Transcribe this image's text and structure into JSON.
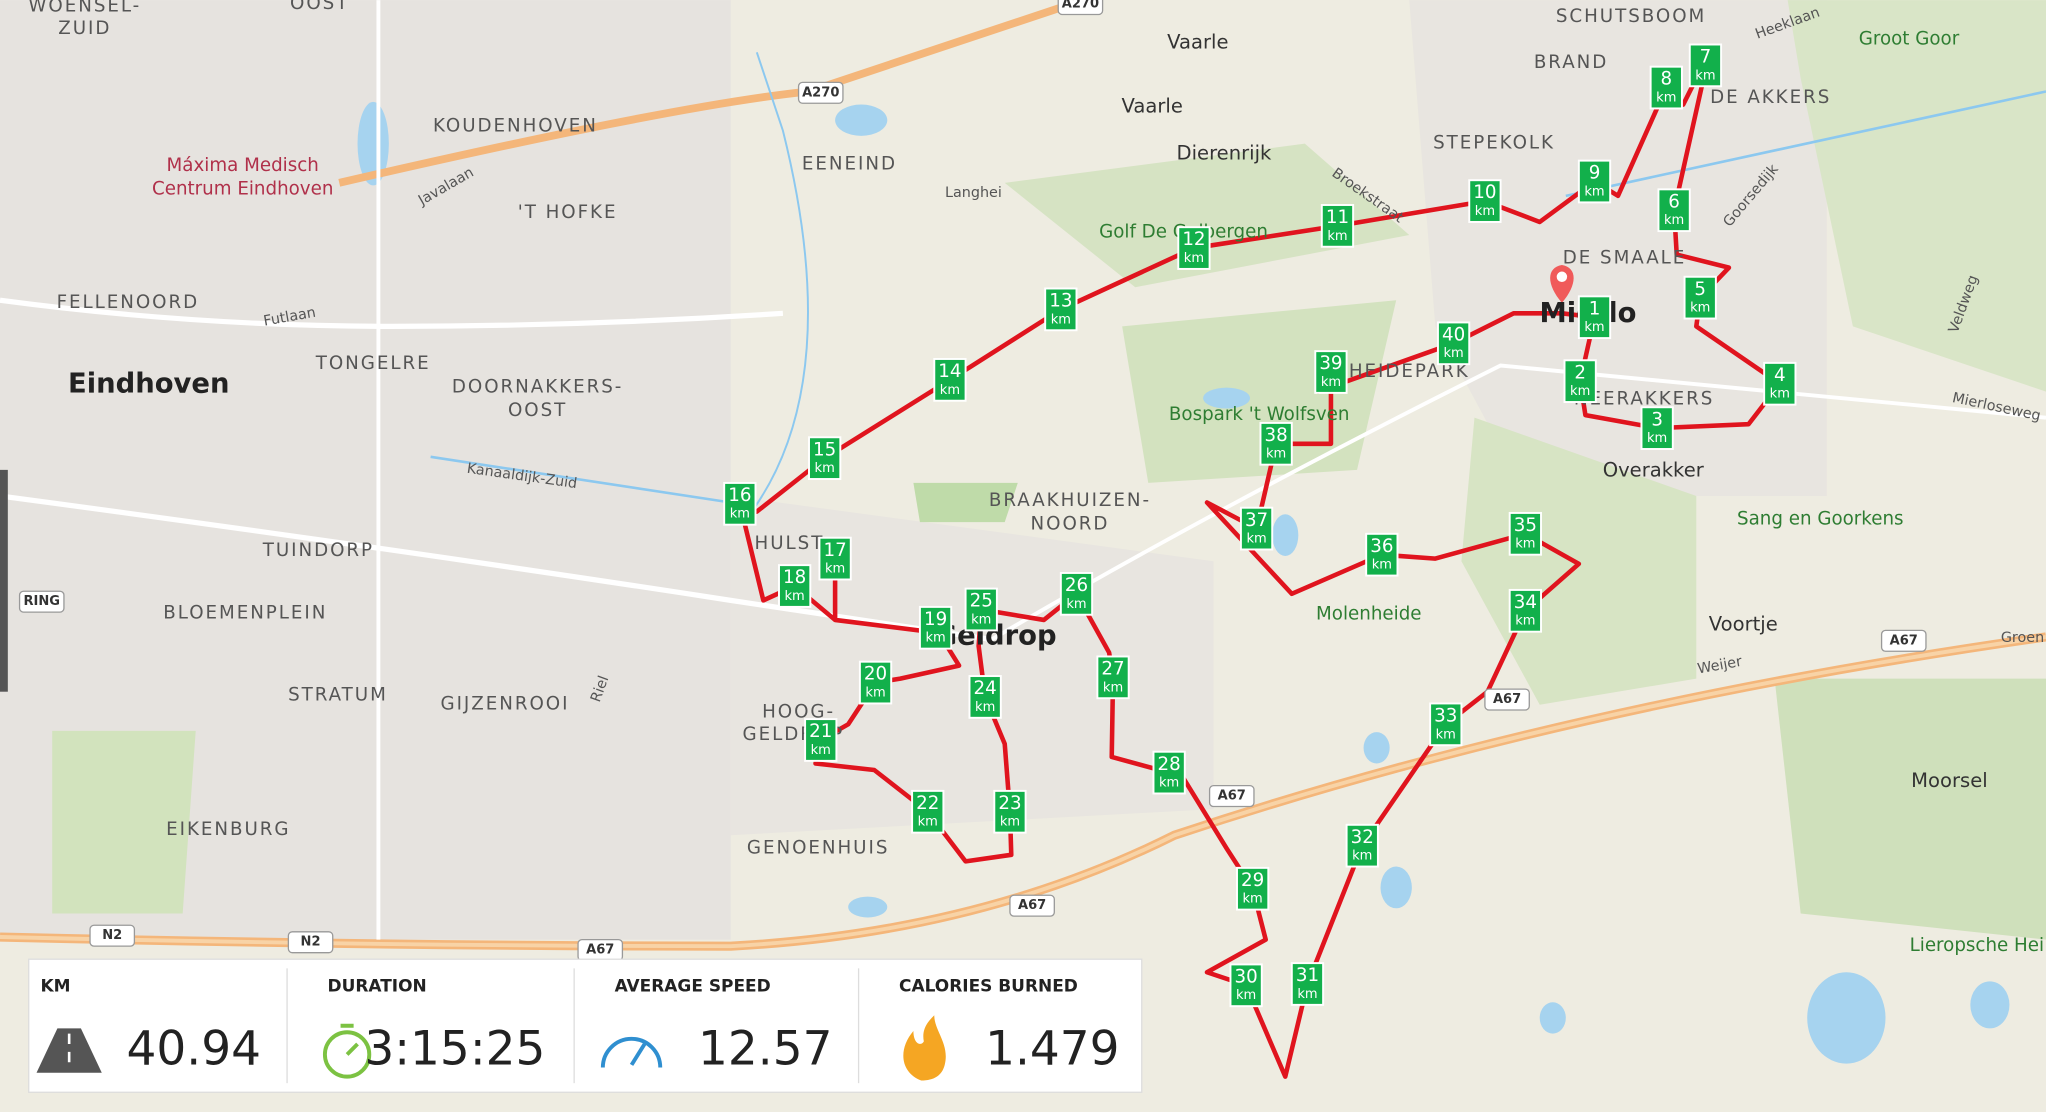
{
  "map": {
    "labels": [
      "WOENSEL-",
      "ZUID",
      "OOST",
      "A270",
      "A270",
      "Vaarle",
      "Vaarle",
      "SCHUTSBOOM",
      "Heeklaan",
      "Groot Goor",
      "BRAND",
      "DE AKKERS",
      "KOUDENHOVEN",
      "Máxima Medisch",
      "Centrum Eindhoven",
      "Dierenrijk",
      "STEPEKOLK",
      "EENEIND",
      "Javalaan",
      "Langhei",
      "Broekstraat",
      "Goorsedijk",
      "'T HOFKE",
      "Golf De Gulbergen",
      "DE SMAALE",
      "FELLENOORD",
      "Futlaan",
      "Mierlo",
      "Veldweg",
      "TONGELRE",
      "Eindhoven",
      "DOORNAKKERS-",
      "OOST",
      "HEIDEPARK",
      "NEERAKKERS",
      "Mierloseweg",
      "Bospark 't Wolfsven",
      "Overakker",
      "Kanaaldijk-Zuid",
      "BRAAKHUIZEN-",
      "NOORD",
      "Sang en Goorkens",
      "TUINDORP",
      "HULST",
      "RING",
      "BLOEMENPLEIN",
      "Molenheide",
      "Geldrop",
      "Voortje",
      "A67",
      "Groen",
      "Weijer",
      "STRATUM",
      "GIJZENROOI",
      "Riel",
      "HOOG-",
      "GELDROP",
      "A67",
      "Moorsel",
      "A67",
      "EIKENBURG",
      "GENOENHUIS",
      "A67",
      "N2",
      "N2",
      "A67",
      "Lieropsche Hei"
    ]
  },
  "km_markers": {
    "unit": "km",
    "numbers": [
      1,
      2,
      3,
      4,
      5,
      6,
      7,
      8,
      9,
      10,
      11,
      12,
      13,
      14,
      15,
      16,
      17,
      18,
      19,
      20,
      21,
      22,
      23,
      24,
      25,
      26,
      27,
      28,
      29,
      30,
      31,
      32,
      33,
      34,
      35,
      36,
      37,
      38,
      39,
      40
    ]
  },
  "stats": [
    {
      "label": "KM",
      "value": "40.94"
    },
    {
      "label": "DURATION",
      "value": "3:15:25"
    },
    {
      "label": "AVERAGE SPEED",
      "value": "12.57"
    },
    {
      "label": "CALORIES BURNED",
      "value": "1.479"
    }
  ]
}
